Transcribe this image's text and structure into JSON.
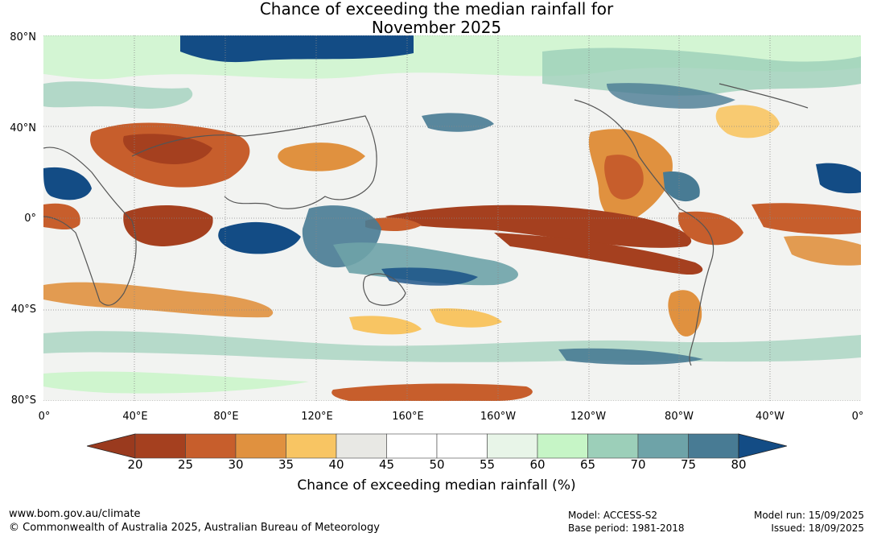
{
  "title": {
    "line1": "Chance of exceeding the median rainfall for",
    "line2": "November 2025"
  },
  "map": {
    "lat_labels": [
      "80°N",
      "40°N",
      "0°",
      "40°S",
      "80°S"
    ],
    "lon_labels": [
      "0°",
      "40°E",
      "80°E",
      "120°E",
      "160°E",
      "160°W",
      "120°W",
      "80°W",
      "40°W",
      "0°"
    ]
  },
  "colorbar": {
    "ticks": [
      "20",
      "25",
      "30",
      "35",
      "40",
      "45",
      "50",
      "55",
      "60",
      "65",
      "70",
      "75",
      "80"
    ],
    "label": "Chance of exceeding median rainfall (%)",
    "low_extend_color": "#9a3a1e",
    "high_extend_color": "#134c85",
    "colors": [
      "#a5401f",
      "#c75e2c",
      "#e0913f",
      "#f8c563",
      "#e8e8e4",
      "#ffffff",
      "#ffffff",
      "#e8f5e8",
      "#c6f5c6",
      "#9ccfb9",
      "#6ea3a8",
      "#487b94"
    ]
  },
  "footer": {
    "website": "www.bom.gov.au/climate",
    "copyright": "© Commonwealth of Australia 2025, Australian Bureau of Meteorology",
    "model": "Model: ACCESS-S2",
    "base_period": "Base period: 1981-2018",
    "model_run": "Model run: 15/09/2025",
    "issued": "Issued: 18/09/2025"
  }
}
